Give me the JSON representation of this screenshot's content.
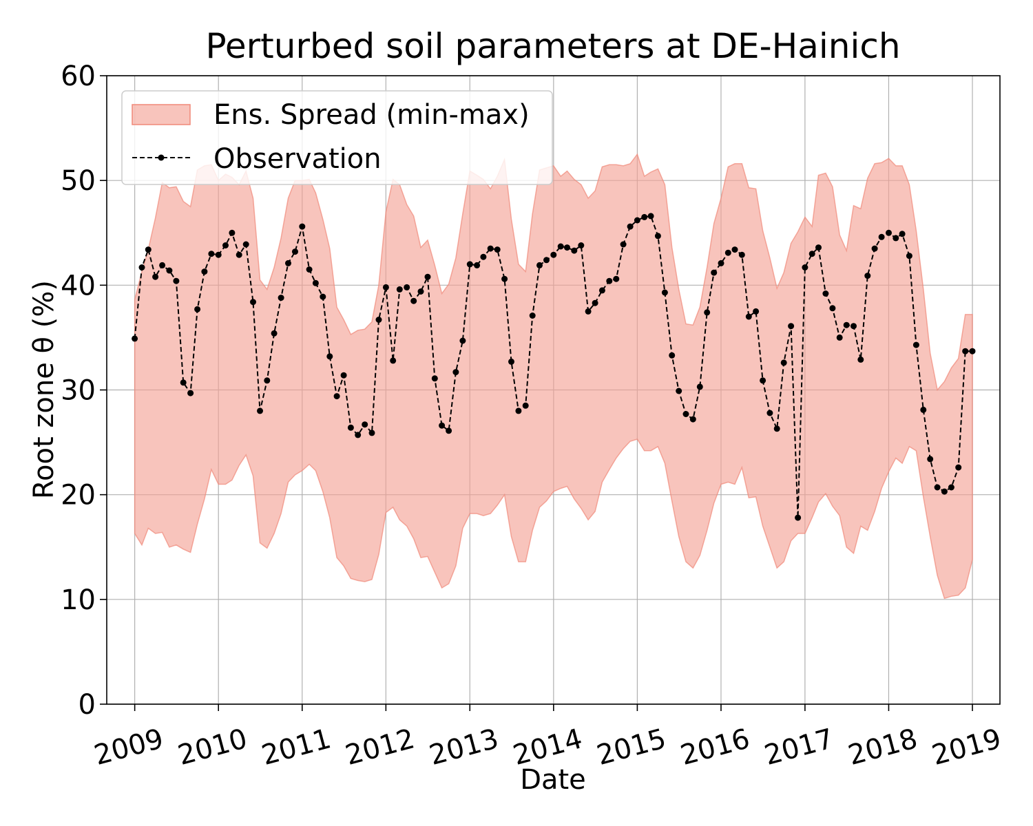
{
  "chart_data": {
    "type": "area",
    "title": "Perturbed soil parameters at DE-Hainich",
    "xlabel": "Date",
    "ylabel": "Root zone θ  (%)",
    "xlim": [
      "2008-09-01",
      "2019-05-01"
    ],
    "ylim": [
      0,
      60
    ],
    "yticks": [
      0,
      10,
      20,
      30,
      40,
      50,
      60
    ],
    "xticks": [
      {
        "date": "2009-01-01",
        "label": "2009"
      },
      {
        "date": "2010-01-01",
        "label": "2010"
      },
      {
        "date": "2011-01-01",
        "label": "2011"
      },
      {
        "date": "2012-01-01",
        "label": "2012"
      },
      {
        "date": "2013-01-01",
        "label": "2013"
      },
      {
        "date": "2014-01-01",
        "label": "2014"
      },
      {
        "date": "2015-01-01",
        "label": "2015"
      },
      {
        "date": "2016-01-01",
        "label": "2016"
      },
      {
        "date": "2017-01-01",
        "label": "2017"
      },
      {
        "date": "2018-01-01",
        "label": "2018"
      },
      {
        "date": "2019-01-01",
        "label": "2019"
      }
    ],
    "grid": true,
    "legend_position": "top-left",
    "colors": {
      "spread_fill": "#f4a093",
      "spread_edge": "#f08878",
      "observation": "#000000"
    },
    "dates": [
      "2009-01",
      "2009-02",
      "2009-03",
      "2009-04",
      "2009-05",
      "2009-06",
      "2009-07",
      "2009-08",
      "2009-09",
      "2009-10",
      "2009-11",
      "2009-12",
      "2010-01",
      "2010-02",
      "2010-03",
      "2010-04",
      "2010-05",
      "2010-06",
      "2010-07",
      "2010-08",
      "2010-09",
      "2010-10",
      "2010-11",
      "2010-12",
      "2011-01",
      "2011-02",
      "2011-03",
      "2011-04",
      "2011-05",
      "2011-06",
      "2011-07",
      "2011-08",
      "2011-09",
      "2011-10",
      "2011-11",
      "2011-12",
      "2012-01",
      "2012-02",
      "2012-03",
      "2012-04",
      "2012-05",
      "2012-06",
      "2012-07",
      "2012-08",
      "2012-09",
      "2012-10",
      "2012-11",
      "2012-12",
      "2013-01",
      "2013-02",
      "2013-03",
      "2013-04",
      "2013-05",
      "2013-06",
      "2013-07",
      "2013-08",
      "2013-09",
      "2013-10",
      "2013-11",
      "2013-12",
      "2014-01",
      "2014-02",
      "2014-03",
      "2014-04",
      "2014-05",
      "2014-06",
      "2014-07",
      "2014-08",
      "2014-09",
      "2014-10",
      "2014-11",
      "2014-12",
      "2015-01",
      "2015-02",
      "2015-03",
      "2015-04",
      "2015-05",
      "2015-06",
      "2015-07",
      "2015-08",
      "2015-09",
      "2015-10",
      "2015-11",
      "2015-12",
      "2016-01",
      "2016-02",
      "2016-03",
      "2016-04",
      "2016-05",
      "2016-06",
      "2016-07",
      "2016-08",
      "2016-09",
      "2016-10",
      "2016-11",
      "2016-12",
      "2017-01",
      "2017-02",
      "2017-03",
      "2017-04",
      "2017-05",
      "2017-06",
      "2017-07",
      "2017-08",
      "2017-09",
      "2017-10",
      "2017-11",
      "2017-12",
      "2018-01",
      "2018-02",
      "2018-03",
      "2018-04",
      "2018-05",
      "2018-06",
      "2018-07",
      "2018-08",
      "2018-09",
      "2018-10",
      "2018-11",
      "2018-12",
      "2019-01"
    ],
    "series": [
      {
        "name": "Ens. Spread (min-max)",
        "type": "band",
        "min": [
          16.3,
          15.2,
          16.8,
          16.3,
          16.4,
          15.0,
          15.2,
          14.8,
          14.5,
          17.2,
          19.6,
          22.4,
          21.0,
          21.0,
          21.4,
          22.8,
          23.8,
          21.8,
          15.4,
          14.9,
          16.3,
          18.2,
          21.2,
          21.9,
          22.3,
          22.9,
          22.3,
          20.3,
          17.8,
          14.0,
          13.2,
          12.0,
          11.8,
          11.7,
          11.9,
          14.3,
          18.3,
          18.8,
          17.6,
          17.0,
          15.8,
          14.0,
          14.1,
          12.6,
          11.1,
          11.5,
          13.2,
          16.8,
          18.2,
          18.2,
          18.0,
          18.2,
          19.0,
          20.0,
          16.0,
          13.6,
          13.6,
          16.6,
          18.8,
          19.4,
          20.3,
          20.6,
          20.8,
          19.6,
          18.7,
          17.6,
          18.4,
          21.2,
          22.4,
          23.5,
          24.4,
          25.1,
          25.3,
          24.2,
          24.2,
          24.6,
          23.0,
          19.4,
          16.0,
          13.6,
          13.0,
          14.2,
          16.6,
          19.2,
          21.0,
          21.2,
          21.0,
          22.6,
          19.7,
          19.8,
          17.0,
          15.0,
          13.0,
          13.6,
          15.6,
          16.3,
          16.3,
          17.8,
          19.3,
          20.1,
          18.9,
          18.0,
          15.0,
          14.4,
          17.0,
          16.6,
          18.4,
          20.6,
          22.2,
          23.5,
          23.0,
          24.6,
          24.2,
          19.8,
          16.0,
          12.3,
          10.1,
          10.3,
          10.4,
          11.1,
          13.8
        ],
        "max": [
          38.6,
          41.3,
          43.4,
          46.4,
          49.8,
          49.3,
          49.4,
          48.0,
          47.5,
          51.0,
          51.4,
          51.5,
          50.0,
          50.6,
          50.3,
          49.6,
          50.9,
          48.3,
          40.5,
          39.6,
          41.7,
          44.5,
          48.3,
          50.0,
          50.0,
          50.1,
          48.8,
          46.3,
          43.5,
          37.9,
          36.7,
          35.3,
          35.7,
          35.8,
          36.5,
          40.0,
          47.0,
          50.1,
          49.6,
          47.7,
          46.6,
          43.6,
          44.3,
          41.9,
          39.2,
          40.1,
          42.6,
          46.8,
          50.9,
          50.5,
          50.1,
          49.2,
          50.4,
          52.0,
          46.3,
          42.0,
          41.3,
          46.8,
          51.0,
          51.2,
          51.4,
          50.4,
          50.9,
          50.1,
          49.6,
          48.3,
          49.0,
          51.3,
          51.5,
          51.5,
          51.4,
          51.6,
          52.5,
          50.4,
          50.8,
          51.1,
          49.6,
          43.6,
          39.6,
          36.3,
          36.2,
          37.9,
          41.7,
          45.9,
          48.3,
          51.3,
          51.6,
          51.6,
          49.3,
          49.2,
          45.2,
          42.6,
          39.7,
          41.2,
          44.0,
          45.1,
          46.5,
          45.6,
          50.5,
          50.7,
          49.4,
          44.8,
          43.3,
          47.6,
          47.3,
          50.2,
          51.6,
          51.7,
          52.1,
          51.4,
          51.4,
          49.6,
          45.2,
          39.6,
          33.5,
          30.0,
          30.8,
          32.1,
          33.0,
          37.2,
          37.2
        ]
      },
      {
        "name": "Observation",
        "type": "line",
        "style": "dashed-with-dots",
        "values": [
          34.9,
          41.7,
          43.4,
          40.8,
          41.9,
          41.4,
          40.4,
          30.7,
          29.7,
          37.7,
          41.3,
          43.0,
          42.9,
          43.8,
          45.0,
          42.9,
          43.9,
          38.4,
          28.0,
          30.9,
          35.4,
          38.8,
          42.1,
          43.2,
          45.6,
          41.5,
          40.2,
          38.9,
          33.2,
          29.4,
          31.4,
          26.4,
          25.7,
          26.7,
          25.9,
          36.7,
          39.8,
          32.8,
          39.6,
          39.8,
          38.5,
          39.4,
          40.8,
          31.1,
          26.6,
          26.1,
          31.7,
          34.7,
          42.0,
          41.9,
          42.7,
          43.5,
          43.4,
          40.6,
          32.7,
          28.0,
          28.5,
          37.1,
          41.9,
          42.4,
          42.9,
          43.7,
          43.6,
          43.3,
          43.8,
          37.5,
          38.3,
          39.5,
          40.4,
          40.6,
          43.9,
          45.6,
          46.2,
          46.5,
          46.6,
          44.7,
          39.3,
          33.3,
          29.9,
          27.7,
          27.2,
          30.3,
          37.4,
          41.2,
          42.1,
          43.1,
          43.4,
          42.9,
          37.0,
          37.5,
          30.9,
          27.8,
          26.3,
          32.6,
          36.1,
          17.8,
          41.7,
          43.0,
          43.6,
          39.2,
          37.8,
          35.0,
          36.2,
          36.1,
          32.9,
          40.9,
          43.5,
          44.6,
          45.0,
          44.5,
          44.9,
          42.8,
          34.3,
          28.1,
          23.4,
          20.7,
          20.3,
          20.7,
          22.6,
          33.7,
          33.7
        ]
      }
    ]
  }
}
